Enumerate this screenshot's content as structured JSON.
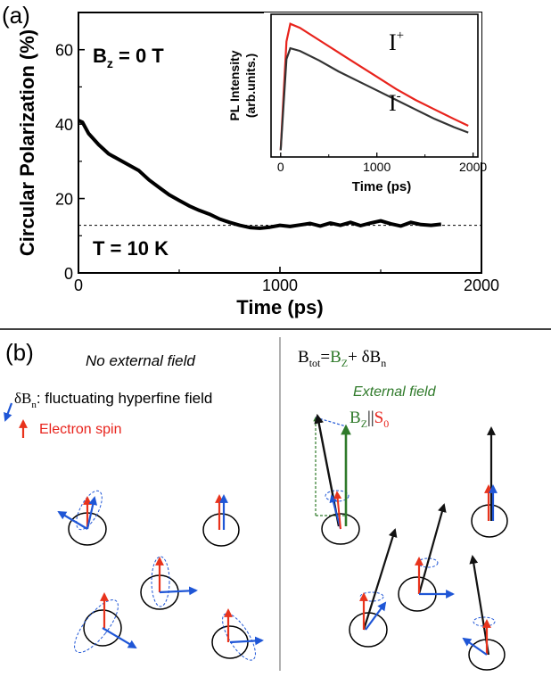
{
  "panel_a": {
    "label": "(a)",
    "bz_text": "B",
    "bz_sub": "z",
    "bz_val": " = 0 T",
    "temp_text": "T = 10 K",
    "chart_data": {
      "type": "line",
      "xlabel": "Time (ps)",
      "ylabel": "Circular Polarization (%)",
      "xlim": [
        0,
        2000
      ],
      "ylim": [
        0,
        70
      ],
      "x_ticks": [
        "0",
        "1000",
        "2000"
      ],
      "y_ticks": [
        "0",
        "20",
        "40",
        "60"
      ],
      "x_tick_values": [
        0,
        1000,
        2000
      ],
      "y_tick_values": [
        0,
        20,
        40,
        60
      ],
      "reference_line_y": 12.8,
      "series": [
        {
          "x": [
            0,
            20,
            50,
            100,
            150,
            200,
            250,
            300,
            350,
            400,
            450,
            500,
            550,
            600,
            650,
            700,
            750,
            800,
            850,
            900,
            950,
            1000,
            1050,
            1100,
            1150,
            1200,
            1250,
            1300,
            1350,
            1400,
            1450,
            1500,
            1550,
            1600,
            1650,
            1700,
            1750,
            1800
          ],
          "y": [
            41,
            40.5,
            37.5,
            34.5,
            32,
            30.5,
            29,
            27.5,
            25,
            23,
            21,
            19.5,
            18,
            16.8,
            15.8,
            14.5,
            13.6,
            12.8,
            12.2,
            12.0,
            12.3,
            12.8,
            12.5,
            12.9,
            13.3,
            12.6,
            13.4,
            12.8,
            13.6,
            12.7,
            13.4,
            14.0,
            13.2,
            12.6,
            13.6,
            13.0,
            12.8,
            13.1
          ]
        }
      ]
    },
    "inset": {
      "chart_data": {
        "type": "line",
        "xlabel": "Time (ps)",
        "ylabel_line1": "PL Intensity",
        "ylabel_line2": "(arb.units.)",
        "xlim": [
          -100,
          2050
        ],
        "ylim": [
          0,
          1.05
        ],
        "x_ticks": [
          "0",
          "1000",
          "2000"
        ],
        "x_tick_values": [
          0,
          1000,
          2000
        ],
        "series": [
          {
            "name": "I+",
            "color": "#e8231c",
            "x": [
              0,
              30,
              60,
              100,
              200,
              400,
              600,
              800,
              1000,
              1200,
              1400,
              1600,
              1800,
              1950
            ],
            "y": [
              0.05,
              0.45,
              0.85,
              0.98,
              0.95,
              0.86,
              0.77,
              0.68,
              0.59,
              0.5,
              0.42,
              0.35,
              0.28,
              0.23
            ]
          },
          {
            "name": "I-",
            "color": "#333333",
            "x": [
              0,
              30,
              60,
              100,
              200,
              400,
              600,
              800,
              1000,
              1200,
              1400,
              1600,
              1800,
              1950
            ],
            "y": [
              0.05,
              0.38,
              0.72,
              0.8,
              0.78,
              0.71,
              0.63,
              0.56,
              0.49,
              0.42,
              0.35,
              0.28,
              0.22,
              0.18
            ]
          }
        ]
      },
      "label_plus": "I",
      "label_plus_sup": "+",
      "label_minus": "I",
      "label_minus_sup": "-"
    }
  },
  "panel_b": {
    "label": "(b)",
    "left_title": "No external field",
    "legend_hf_main": "δB",
    "legend_hf_sub": "n",
    "legend_hf_rest": ": fluctuating hyperfine field",
    "legend_spin": "Electron spin",
    "right_title_1": "B",
    "right_title_1_sub": "tot",
    "right_title_2": "=",
    "right_title_3": "B",
    "right_title_3_sub": "Z",
    "right_title_4": "+ δB",
    "right_title_4_sub": "n",
    "ext_field": "External field",
    "bz_label": "B",
    "bz_label_sub": "Z",
    "parallel": "||",
    "s0": "S",
    "s0_sub": "0",
    "colors": {
      "blue": "#1f56d6",
      "red": "#e8331c",
      "green": "#2f7a2a",
      "black": "#111111"
    }
  }
}
